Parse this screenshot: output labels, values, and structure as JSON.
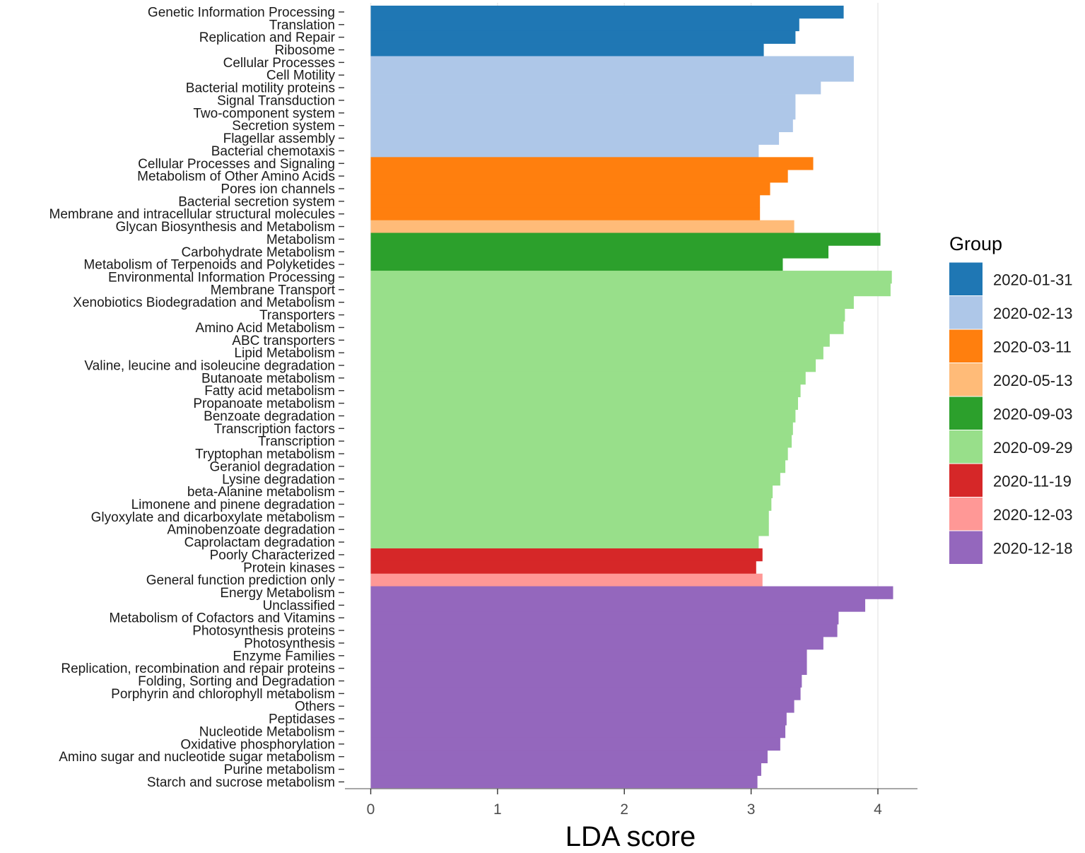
{
  "chart_data": {
    "type": "bar",
    "orientation": "horizontal",
    "xlabel": "LDA score",
    "ylabel": "",
    "xlim": [
      -0.2,
      4.32
    ],
    "xticks": [
      0,
      1,
      2,
      3,
      4
    ],
    "grid": "vertical-major",
    "legend": {
      "title": "Group",
      "position": "right",
      "entries": [
        {
          "label": "2020-01-31",
          "color": "#1F77B4"
        },
        {
          "label": "2020-02-13",
          "color": "#AEC7E8"
        },
        {
          "label": "2020-03-11",
          "color": "#FF7F0E"
        },
        {
          "label": "2020-05-13",
          "color": "#FFBB78"
        },
        {
          "label": "2020-09-03",
          "color": "#2CA02C"
        },
        {
          "label": "2020-09-29",
          "color": "#98DF8A"
        },
        {
          "label": "2020-11-19",
          "color": "#D62728"
        },
        {
          "label": "2020-12-03",
          "color": "#FF9896"
        },
        {
          "label": "2020-12-18",
          "color": "#9467BD"
        }
      ]
    },
    "bars": [
      {
        "label": "Genetic Information Processing",
        "value": 3.73,
        "group": "2020-01-31"
      },
      {
        "label": "Translation",
        "value": 3.38,
        "group": "2020-01-31"
      },
      {
        "label": "Replication and Repair",
        "value": 3.35,
        "group": "2020-01-31"
      },
      {
        "label": "Ribosome",
        "value": 3.1,
        "group": "2020-01-31"
      },
      {
        "label": "Cellular Processes",
        "value": 3.81,
        "group": "2020-02-13"
      },
      {
        "label": "Cell Motility",
        "value": 3.81,
        "group": "2020-02-13"
      },
      {
        "label": "Bacterial motility proteins",
        "value": 3.55,
        "group": "2020-02-13"
      },
      {
        "label": "Signal Transduction",
        "value": 3.35,
        "group": "2020-02-13"
      },
      {
        "label": "Two-component system",
        "value": 3.35,
        "group": "2020-02-13"
      },
      {
        "label": "Secretion system",
        "value": 3.33,
        "group": "2020-02-13"
      },
      {
        "label": "Flagellar assembly",
        "value": 3.22,
        "group": "2020-02-13"
      },
      {
        "label": "Bacterial chemotaxis",
        "value": 3.06,
        "group": "2020-02-13"
      },
      {
        "label": "Cellular Processes and Signaling",
        "value": 3.49,
        "group": "2020-03-11"
      },
      {
        "label": "Metabolism of Other Amino Acids",
        "value": 3.29,
        "group": "2020-03-11"
      },
      {
        "label": "Pores ion channels",
        "value": 3.15,
        "group": "2020-03-11"
      },
      {
        "label": "Bacterial secretion system",
        "value": 3.07,
        "group": "2020-03-11"
      },
      {
        "label": "Membrane and intracellular structural molecules",
        "value": 3.07,
        "group": "2020-03-11"
      },
      {
        "label": "Glycan Biosynthesis and Metabolism",
        "value": 3.34,
        "group": "2020-05-13"
      },
      {
        "label": "Metabolism",
        "value": 4.02,
        "group": "2020-09-03"
      },
      {
        "label": "Carbohydrate Metabolism",
        "value": 3.61,
        "group": "2020-09-03"
      },
      {
        "label": "Metabolism of Terpenoids and Polyketides",
        "value": 3.25,
        "group": "2020-09-03"
      },
      {
        "label": "Environmental Information Processing",
        "value": 4.11,
        "group": "2020-09-29"
      },
      {
        "label": "Membrane Transport",
        "value": 4.1,
        "group": "2020-09-29"
      },
      {
        "label": "Xenobiotics Biodegradation and Metabolism",
        "value": 3.81,
        "group": "2020-09-29"
      },
      {
        "label": "Transporters",
        "value": 3.74,
        "group": "2020-09-29"
      },
      {
        "label": "Amino Acid Metabolism",
        "value": 3.73,
        "group": "2020-09-29"
      },
      {
        "label": "ABC transporters",
        "value": 3.62,
        "group": "2020-09-29"
      },
      {
        "label": "Lipid Metabolism",
        "value": 3.57,
        "group": "2020-09-29"
      },
      {
        "label": "Valine, leucine and isoleucine degradation",
        "value": 3.51,
        "group": "2020-09-29"
      },
      {
        "label": "Butanoate metabolism",
        "value": 3.43,
        "group": "2020-09-29"
      },
      {
        "label": "Fatty acid metabolism",
        "value": 3.39,
        "group": "2020-09-29"
      },
      {
        "label": "Propanoate metabolism",
        "value": 3.37,
        "group": "2020-09-29"
      },
      {
        "label": "Benzoate degradation",
        "value": 3.35,
        "group": "2020-09-29"
      },
      {
        "label": "Transcription factors",
        "value": 3.33,
        "group": "2020-09-29"
      },
      {
        "label": "Transcription",
        "value": 3.32,
        "group": "2020-09-29"
      },
      {
        "label": "Tryptophan metabolism",
        "value": 3.29,
        "group": "2020-09-29"
      },
      {
        "label": "Geraniol degradation",
        "value": 3.27,
        "group": "2020-09-29"
      },
      {
        "label": "Lysine degradation",
        "value": 3.23,
        "group": "2020-09-29"
      },
      {
        "label": "beta-Alanine metabolism",
        "value": 3.17,
        "group": "2020-09-29"
      },
      {
        "label": "Limonene and pinene degradation",
        "value": 3.16,
        "group": "2020-09-29"
      },
      {
        "label": "Glyoxylate and dicarboxylate metabolism",
        "value": 3.14,
        "group": "2020-09-29"
      },
      {
        "label": "Aminobenzoate degradation",
        "value": 3.14,
        "group": "2020-09-29"
      },
      {
        "label": "Caprolactam degradation",
        "value": 3.06,
        "group": "2020-09-29"
      },
      {
        "label": "Poorly Characterized",
        "value": 3.09,
        "group": "2020-11-19"
      },
      {
        "label": "Protein kinases",
        "value": 3.04,
        "group": "2020-11-19"
      },
      {
        "label": "General function prediction only",
        "value": 3.09,
        "group": "2020-12-03"
      },
      {
        "label": "Energy Metabolism",
        "value": 4.12,
        "group": "2020-12-18"
      },
      {
        "label": "Unclassified",
        "value": 3.9,
        "group": "2020-12-18"
      },
      {
        "label": "Metabolism of Cofactors and Vitamins",
        "value": 3.69,
        "group": "2020-12-18"
      },
      {
        "label": "Photosynthesis proteins",
        "value": 3.68,
        "group": "2020-12-18"
      },
      {
        "label": "Photosynthesis",
        "value": 3.57,
        "group": "2020-12-18"
      },
      {
        "label": "Enzyme Families",
        "value": 3.44,
        "group": "2020-12-18"
      },
      {
        "label": "Replication, recombination and repair proteins",
        "value": 3.44,
        "group": "2020-12-18"
      },
      {
        "label": "Folding, Sorting and Degradation",
        "value": 3.4,
        "group": "2020-12-18"
      },
      {
        "label": "Porphyrin and chlorophyll metabolism",
        "value": 3.39,
        "group": "2020-12-18"
      },
      {
        "label": "Others",
        "value": 3.34,
        "group": "2020-12-18"
      },
      {
        "label": "Peptidases",
        "value": 3.28,
        "group": "2020-12-18"
      },
      {
        "label": "Nucleotide Metabolism",
        "value": 3.27,
        "group": "2020-12-18"
      },
      {
        "label": "Oxidative phosphorylation",
        "value": 3.23,
        "group": "2020-12-18"
      },
      {
        "label": "Amino sugar and nucleotide sugar metabolism",
        "value": 3.13,
        "group": "2020-12-18"
      },
      {
        "label": "Purine metabolism",
        "value": 3.08,
        "group": "2020-12-18"
      },
      {
        "label": "Starch and sucrose metabolism",
        "value": 3.05,
        "group": "2020-12-18"
      }
    ]
  }
}
